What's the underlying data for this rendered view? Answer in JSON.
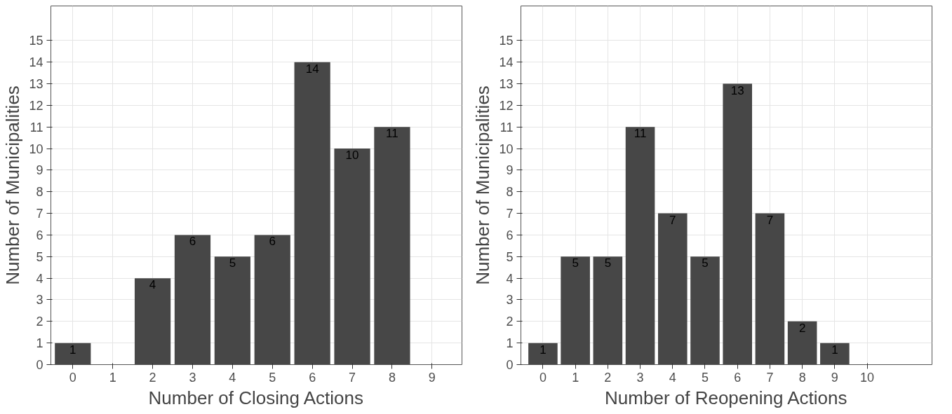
{
  "chart_data": [
    {
      "type": "bar",
      "xlabel": "Number of Closing Actions",
      "ylabel": "Number of Municipalities",
      "x": [
        0,
        1,
        2,
        3,
        4,
        5,
        6,
        7,
        8,
        9
      ],
      "values": [
        1,
        0,
        4,
        6,
        5,
        6,
        14,
        10,
        11,
        0
      ],
      "value_labels": [
        "1",
        null,
        "4",
        "6",
        "5",
        "6",
        "14",
        "10",
        "11",
        null
      ],
      "color": "#474747",
      "xlim": [
        -0.55,
        9.75
      ],
      "xticks": [
        0,
        1,
        2,
        3,
        4,
        5,
        6,
        7,
        8,
        9
      ],
      "ylim": [
        0,
        16.6
      ],
      "yticks": [
        0,
        1,
        2,
        3,
        4,
        5,
        6,
        7,
        8,
        9,
        10,
        11,
        12,
        13,
        14,
        15
      ],
      "grid": true
    },
    {
      "type": "bar",
      "xlabel": "Number of Reopening Actions",
      "ylabel": "Number of Municipalities",
      "x": [
        0,
        1,
        2,
        3,
        4,
        5,
        6,
        7,
        8,
        9,
        10
      ],
      "values": [
        1,
        5,
        5,
        11,
        7,
        5,
        13,
        7,
        2,
        1,
        0
      ],
      "value_labels": [
        "1",
        "5",
        "5",
        "11",
        "7",
        "5",
        "13",
        "7",
        "2",
        "1",
        null
      ],
      "color": "#474747",
      "xlim": [
        -0.68,
        12
      ],
      "xticks": [
        0,
        1,
        2,
        3,
        4,
        5,
        6,
        7,
        8,
        9,
        10
      ],
      "ylim": [
        0,
        16.6
      ],
      "yticks": [
        0,
        1,
        2,
        3,
        4,
        5,
        6,
        7,
        8,
        9,
        10,
        11,
        12,
        13,
        14,
        15
      ],
      "grid": true
    }
  ]
}
